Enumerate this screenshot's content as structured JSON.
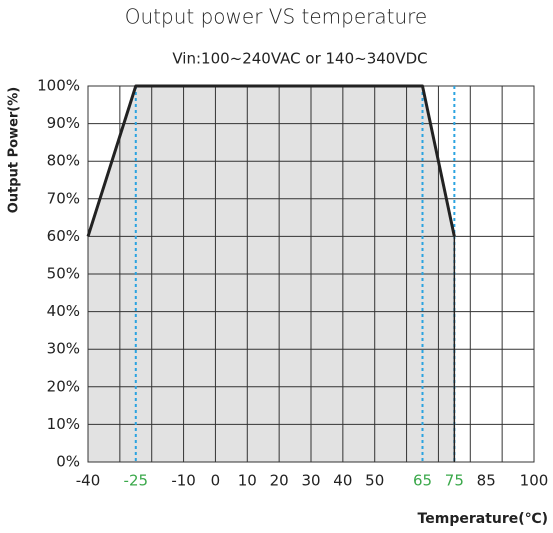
{
  "chart_data": {
    "type": "line",
    "title": "Output power VS temperature",
    "subtitle": "Vin:100~240VAC or 140~340VDC",
    "x_label": "Temperature(℃)",
    "y_label": "Output Power(%)",
    "x": [
      -40,
      -25,
      65,
      75
    ],
    "series": [
      {
        "name": "Output power",
        "color": "#222222",
        "fill": "#e2e2e2",
        "values": [
          60,
          100,
          100,
          60
        ]
      }
    ],
    "xlim": [
      -40,
      100
    ],
    "ylim": [
      0,
      100
    ],
    "xticks": [
      -40,
      -25,
      -10,
      0,
      10,
      20,
      30,
      40,
      50,
      65,
      75,
      85,
      100
    ],
    "xtick_colors": [
      "#222222",
      "#3aa84a",
      "#222222",
      "#222222",
      "#222222",
      "#222222",
      "#222222",
      "#222222",
      "#222222",
      "#3aa84a",
      "#3aa84a",
      "#222222",
      "#222222"
    ],
    "yticks": [
      {
        "value": 0,
        "label": "0%"
      },
      {
        "value": 10,
        "label": "10%"
      },
      {
        "value": 20,
        "label": "20%"
      },
      {
        "value": 30,
        "label": "30%"
      },
      {
        "value": 40,
        "label": "40%"
      },
      {
        "value": 50,
        "label": "50%"
      },
      {
        "value": 60,
        "label": "60%"
      },
      {
        "value": 70,
        "label": "70%"
      },
      {
        "value": 80,
        "label": "80%"
      },
      {
        "value": 90,
        "label": "90%"
      },
      {
        "value": 100,
        "label": "100%"
      }
    ],
    "xgrid": [
      -40,
      -30,
      -20,
      -10,
      0,
      10,
      20,
      30,
      40,
      50,
      60,
      70,
      80,
      90,
      100
    ],
    "reference_lines": {
      "x": [
        -25,
        65,
        75
      ],
      "color": "#2ba3e0"
    },
    "grid": true
  }
}
